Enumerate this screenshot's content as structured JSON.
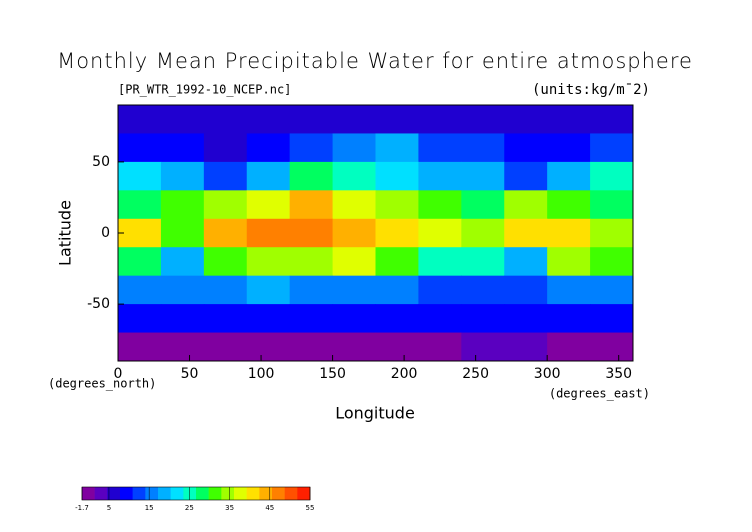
{
  "chart_data": {
    "type": "heatmap",
    "title": "Monthly Mean Precipitable Water for entire atmosphere",
    "subtitle": "[PR_WTR_1992-10_NCEP.nc]",
    "units": "(units:kg/m¯2)",
    "x_label": "Longitude",
    "y_label": "Latitude",
    "x_unit": "(degrees_east)",
    "y_unit": "(degrees_north)",
    "x": [
      15,
      45,
      75,
      105,
      135,
      165,
      195,
      225,
      255,
      285,
      315,
      345
    ],
    "y": [
      80,
      60,
      40,
      20,
      0,
      -20,
      -40,
      -60,
      -80
    ],
    "values": [
      [
        5,
        5,
        5,
        5,
        5,
        5,
        5,
        5,
        5,
        5,
        5,
        5
      ],
      [
        10,
        8,
        6,
        10,
        14,
        16,
        18,
        14,
        12,
        8,
        10,
        12
      ],
      [
        22,
        18,
        14,
        20,
        28,
        26,
        22,
        20,
        18,
        14,
        20,
        24
      ],
      [
        28,
        30,
        35,
        38,
        44,
        38,
        34,
        30,
        28,
        34,
        32,
        28
      ],
      [
        40,
        30,
        45,
        48,
        48,
        45,
        42,
        38,
        35,
        40,
        42,
        35
      ],
      [
        28,
        18,
        30,
        36,
        34,
        38,
        32,
        26,
        24,
        20,
        36,
        30
      ],
      [
        16,
        16,
        16,
        18,
        16,
        16,
        16,
        14,
        14,
        14,
        16,
        16
      ],
      [
        8,
        8,
        8,
        8,
        8,
        8,
        8,
        8,
        8,
        8,
        8,
        8
      ],
      [
        1,
        0,
        1,
        1,
        0,
        0,
        1,
        1,
        2,
        2,
        1,
        0
      ]
    ],
    "xlim": [
      0,
      360
    ],
    "ylim": [
      -90,
      90
    ],
    "xticks": [
      0,
      50,
      100,
      150,
      200,
      250,
      300,
      350
    ],
    "yticks": [
      50,
      0,
      -50
    ],
    "clim": [
      -1.7,
      55
    ],
    "cticks": [
      -1.7,
      5,
      15,
      25,
      35,
      45,
      55
    ],
    "colorscale": [
      "#8000a0",
      "#5a00c0",
      "#2000d0",
      "#0000ff",
      "#0040ff",
      "#0080ff",
      "#00b0ff",
      "#00e0ff",
      "#00ffc0",
      "#00ff60",
      "#40ff00",
      "#a0ff00",
      "#e0ff00",
      "#ffe000",
      "#ffb000",
      "#ff8000",
      "#ff5000",
      "#ff2000"
    ]
  }
}
